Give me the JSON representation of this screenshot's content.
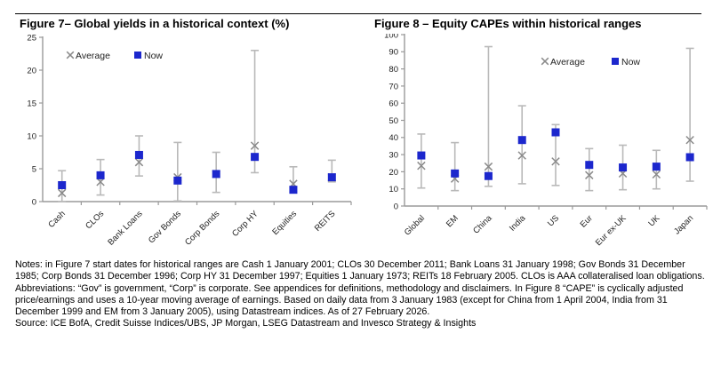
{
  "colors": {
    "now_marker": "#1c27cd",
    "average_marker": "#8a8a8a",
    "range_bar": "#b9b9b9",
    "axis": "#9a9a9a",
    "tick_text": "#1f1f1f"
  },
  "chart_data": [
    {
      "type": "scatter",
      "title": "Figure 7– Global yields in a historical context (%)",
      "categories": [
        "Cash",
        "CLOs",
        "Bank Loans",
        "Gov Bonds",
        "Corp Bonds",
        "Corp HY",
        "Equities",
        "REITS"
      ],
      "series": [
        {
          "name": "Average",
          "marker": "x",
          "values": [
            1.3,
            3.0,
            6.0,
            3.7,
            4.2,
            8.5,
            2.7,
            3.7
          ]
        },
        {
          "name": "Now",
          "marker": "square",
          "values": [
            2.5,
            4.0,
            7.1,
            3.2,
            4.2,
            6.8,
            1.8,
            3.7
          ]
        }
      ],
      "ranges": {
        "min": [
          0,
          1.0,
          3.9,
          0.1,
          1.4,
          4.4,
          1.5,
          3.0
        ],
        "max": [
          4.7,
          6.4,
          10.0,
          9.0,
          7.5,
          23.0,
          5.3,
          6.3
        ]
      },
      "ylim": [
        0,
        25
      ],
      "ytick_step": 5,
      "grid": false,
      "legend_pos": "upper-left"
    },
    {
      "type": "scatter",
      "title": "Figure 8 – Equity CAPEs within historical ranges",
      "categories": [
        "Global",
        "EM",
        "China",
        "India",
        "US",
        "Eur",
        "Eur ex-UK",
        "UK",
        "Japan"
      ],
      "series": [
        {
          "name": "Average",
          "marker": "x",
          "values": [
            23.5,
            16,
            23,
            29.5,
            26,
            18,
            19,
            18.5,
            38.5
          ]
        },
        {
          "name": "Now",
          "marker": "square",
          "values": [
            29.5,
            19,
            17.5,
            38.5,
            43,
            24,
            22.5,
            23,
            28.5
          ]
        }
      ],
      "ranges": {
        "min": [
          10.5,
          9,
          11.5,
          13,
          12,
          9,
          9.5,
          10,
          14.5
        ],
        "max": [
          42,
          37,
          93,
          58.5,
          47.5,
          33.5,
          35.5,
          32.5,
          92
        ]
      },
      "ylim": [
        0,
        100
      ],
      "ytick_step": 10,
      "grid": false,
      "legend_pos": "upper-right"
    }
  ],
  "notes": {
    "text": "Notes: in Figure 7 start dates for historical ranges are Cash 1 January 2001; CLOs 30 December 2011; Bank Loans 31 January 1998; Gov Bonds 31 December 1985; Corp Bonds 31 December 1996; Corp HY 31 December 1997; Equities 1 January 1973; REITs 18 February 2005. CLOs is AAA collateralised loan obligations. Abbreviations: “Gov” is government, “Corp” is corporate. See appendices for definitions, methodology and disclaimers. In Figure 8 “CAPE” is cyclically adjusted price/earnings and uses a 10-year moving average of earnings. Based on daily data from 3 January 1983 (except for China from 1 April 2004, India from 31 December 1999 and EM from 3 January 2005), using Datastream indices. As of 27 February 2026.",
    "source": "Source: ICE BofA, Credit Suisse Indices/UBS, JP Morgan, LSEG Datastream and Invesco Strategy & Insights"
  }
}
